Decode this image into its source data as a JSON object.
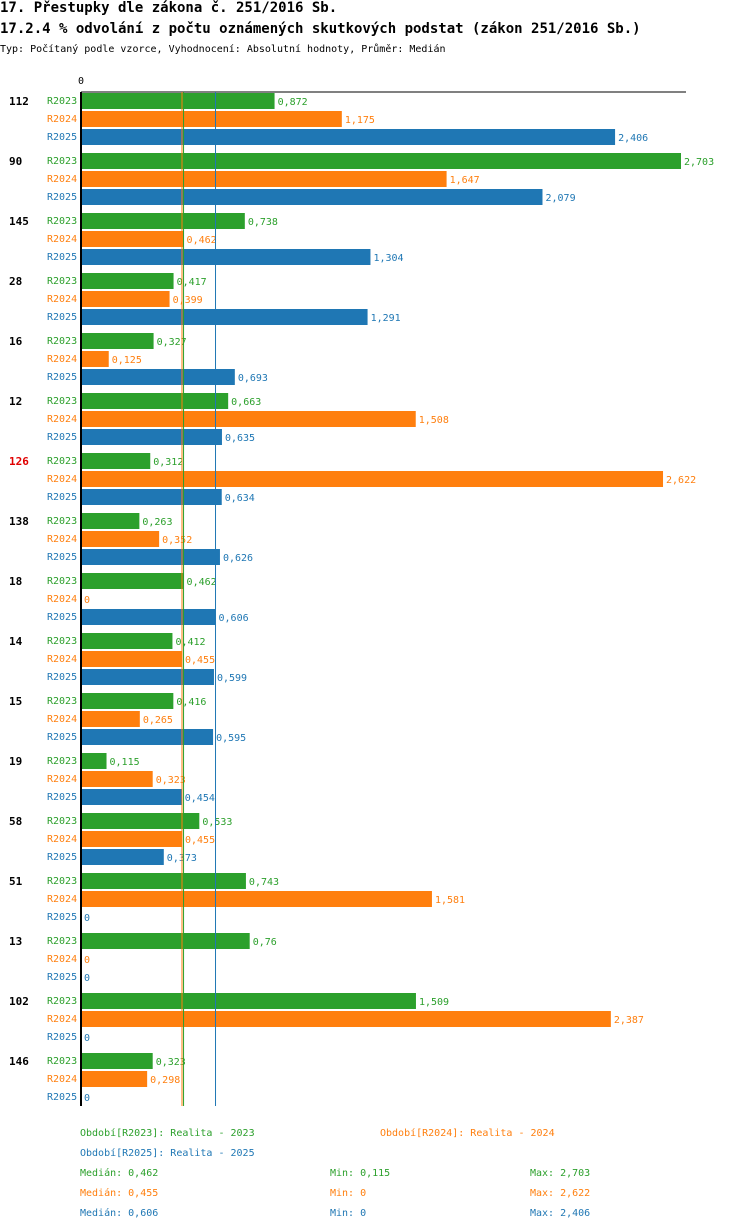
{
  "header": {
    "title": "17. Přestupky dle zákona č. 251/2016 Sb.",
    "subtitle": "17.2.4 % odvolání z počtu oznámených skutkových podstat (zákon 251/2016 Sb.)",
    "type_line": "Typ: Počítaný podle vzorce, Vyhodnocení: Absolutní hodnoty, Průměr: Medián"
  },
  "colors": {
    "R2023": "#2ca02c",
    "R2024": "#ff7f0e",
    "R2025": "#1f77b4",
    "highlight": "#e00000"
  },
  "chart_data": {
    "type": "bar",
    "orientation": "horizontal",
    "axis_zero_label": "0",
    "xlim": [
      0,
      2.703
    ],
    "series_names": [
      "R2023",
      "R2024",
      "R2025"
    ],
    "medians": {
      "R2023": 0.462,
      "R2024": 0.455,
      "R2025": 0.606
    },
    "groups": [
      {
        "label": "112",
        "highlight": false,
        "values": [
          0.872,
          1.175,
          2.406
        ],
        "labels": [
          "0,872",
          "1,175",
          "2,406"
        ]
      },
      {
        "label": "90",
        "highlight": false,
        "values": [
          2.703,
          1.647,
          2.079
        ],
        "labels": [
          "2,703",
          "1,647",
          "2,079"
        ]
      },
      {
        "label": "145",
        "highlight": false,
        "values": [
          0.738,
          0.462,
          1.304
        ],
        "labels": [
          "0,738",
          "0,462",
          "1,304"
        ]
      },
      {
        "label": "28",
        "highlight": false,
        "values": [
          0.417,
          0.399,
          1.291
        ],
        "labels": [
          "0,417",
          "0,399",
          "1,291"
        ]
      },
      {
        "label": "16",
        "highlight": false,
        "values": [
          0.327,
          0.125,
          0.693
        ],
        "labels": [
          "0,327",
          "0,125",
          "0,693"
        ]
      },
      {
        "label": "12",
        "highlight": false,
        "values": [
          0.663,
          1.508,
          0.635
        ],
        "labels": [
          "0,663",
          "1,508",
          "0,635"
        ]
      },
      {
        "label": "126",
        "highlight": true,
        "values": [
          0.312,
          2.622,
          0.634
        ],
        "labels": [
          "0,312",
          "2,622",
          "0,634"
        ]
      },
      {
        "label": "138",
        "highlight": false,
        "values": [
          0.263,
          0.352,
          0.626
        ],
        "labels": [
          "0,263",
          "0,352",
          "0,626"
        ]
      },
      {
        "label": "18",
        "highlight": false,
        "values": [
          0.462,
          0,
          0.606
        ],
        "labels": [
          "0,462",
          "0",
          "0,606"
        ]
      },
      {
        "label": "14",
        "highlight": false,
        "values": [
          0.412,
          0.455,
          0.599
        ],
        "labels": [
          "0,412",
          "0,455",
          "0,599"
        ]
      },
      {
        "label": "15",
        "highlight": false,
        "values": [
          0.416,
          0.265,
          0.595
        ],
        "labels": [
          "0,416",
          "0,265",
          "0,595"
        ]
      },
      {
        "label": "19",
        "highlight": false,
        "values": [
          0.115,
          0.323,
          0.454
        ],
        "labels": [
          "0,115",
          "0,323",
          "0,454"
        ]
      },
      {
        "label": "58",
        "highlight": false,
        "values": [
          0.533,
          0.455,
          0.373
        ],
        "labels": [
          "0,533",
          "0,455",
          "0,373"
        ]
      },
      {
        "label": "51",
        "highlight": false,
        "values": [
          0.743,
          1.581,
          0
        ],
        "labels": [
          "0,743",
          "1,581",
          "0"
        ]
      },
      {
        "label": "13",
        "highlight": false,
        "values": [
          0.76,
          0,
          0
        ],
        "labels": [
          "0,76",
          "0",
          "0"
        ]
      },
      {
        "label": "102",
        "highlight": false,
        "values": [
          1.509,
          2.387,
          0
        ],
        "labels": [
          "1,509",
          "2,387",
          "0"
        ]
      },
      {
        "label": "146",
        "highlight": false,
        "values": [
          0.323,
          0.298,
          0
        ],
        "labels": [
          "0,323",
          "0,298",
          "0"
        ]
      }
    ]
  },
  "legend": {
    "r2023": "Období[R2023]: Realita - 2023",
    "r2024": "Období[R2024]: Realita - 2024",
    "r2025": "Období[R2025]: Realita - 2025",
    "stats": [
      {
        "median": "Medián: 0,462",
        "min": "Min: 0,115",
        "max": "Max: 2,703"
      },
      {
        "median": "Medián: 0,455",
        "min": "Min: 0",
        "max": "Max: 2,622"
      },
      {
        "median": "Medián: 0,606",
        "min": "Min: 0",
        "max": "Max: 2,406"
      }
    ]
  }
}
